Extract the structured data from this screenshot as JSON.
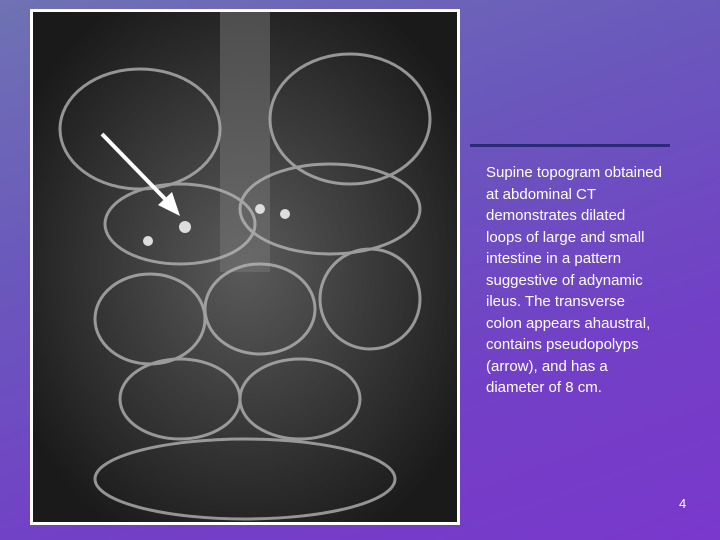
{
  "slide": {
    "caption_lines": [
      "Supine topogram obtained",
      "at abdominal CT",
      "demonstrates dilated",
      "loops of large and small",
      "intestine in a pattern",
      "suggestive of adynamic",
      "ileus. The transverse",
      "colon appears ahaustral,",
      "contains pseudopolyps",
      "(arrow), and has a",
      "diameter of 8 cm."
    ],
    "page_number": "4"
  }
}
